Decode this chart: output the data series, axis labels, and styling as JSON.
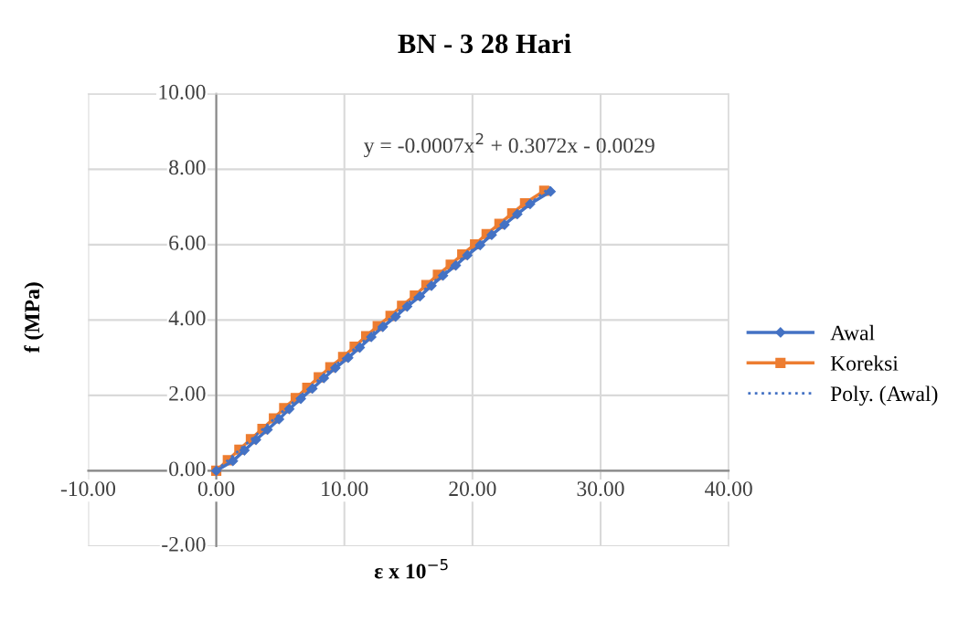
{
  "chart_data": {
    "type": "line",
    "title": "BN - 3 28 Hari",
    "xlabel": "ε x 10$^{−5}$",
    "ylabel": "f (MPa)",
    "xlim": [
      -10,
      40
    ],
    "xticks": [
      {
        "value": -10,
        "label": "-10.00"
      },
      {
        "value": 0,
        "label": "0.00"
      },
      {
        "value": 10,
        "label": "10.00"
      },
      {
        "value": 20,
        "label": "20.00"
      },
      {
        "value": 30,
        "label": "30.00"
      },
      {
        "value": 40,
        "label": "40.00"
      }
    ],
    "ylim": [
      -2,
      10
    ],
    "yticks": [
      {
        "value": -2,
        "label": "-2.00"
      },
      {
        "value": 0,
        "label": "0.00"
      },
      {
        "value": 2,
        "label": "2.00"
      },
      {
        "value": 4,
        "label": "4.00"
      },
      {
        "value": 6,
        "label": "6.00"
      },
      {
        "value": 8,
        "label": "8.00"
      },
      {
        "value": 10,
        "label": "10.00"
      }
    ],
    "grid": true,
    "legend": "right",
    "annotations": [
      "y = -0.0007x$^{2}$ + 0.3072x - 0.0029"
    ],
    "series": [
      {
        "name": "Awal",
        "color": "#4472c4",
        "marker": "diamond",
        "line_style": "solid",
        "x": [
          0,
          1.3,
          2.2,
          3.1,
          4.0,
          4.9,
          5.7,
          6.6,
          7.5,
          8.4,
          9.3,
          10.3,
          11.2,
          12.1,
          13.0,
          14.0,
          14.9,
          15.9,
          16.8,
          17.7,
          18.7,
          19.6,
          20.6,
          21.5,
          22.5,
          23.5,
          24.5,
          26.1
        ],
        "values": [
          0,
          0.26,
          0.54,
          0.82,
          1.09,
          1.37,
          1.64,
          1.91,
          2.18,
          2.46,
          2.73,
          3.0,
          3.27,
          3.55,
          3.82,
          4.09,
          4.36,
          4.63,
          4.91,
          5.18,
          5.45,
          5.72,
          5.99,
          6.26,
          6.53,
          6.81,
          7.08,
          7.41
        ]
      },
      {
        "name": "Koreksi",
        "color": "#ed7d31",
        "marker": "square",
        "line_style": "solid",
        "x": [
          0,
          0.9,
          1.8,
          2.7,
          3.6,
          4.5,
          5.3,
          6.2,
          7.1,
          8.0,
          8.9,
          9.9,
          10.8,
          11.7,
          12.6,
          13.6,
          14.5,
          15.5,
          16.4,
          17.3,
          18.3,
          19.2,
          20.2,
          21.1,
          22.1,
          23.1,
          24.1,
          25.6
        ],
        "values": [
          0,
          0.28,
          0.56,
          0.84,
          1.11,
          1.39,
          1.66,
          1.93,
          2.2,
          2.48,
          2.75,
          3.02,
          3.29,
          3.57,
          3.84,
          4.11,
          4.38,
          4.65,
          4.93,
          5.2,
          5.47,
          5.74,
          6.01,
          6.28,
          6.55,
          6.83,
          7.1,
          7.43
        ]
      },
      {
        "name": "Poly. (Awal)",
        "color": "#4472c4",
        "marker": "none",
        "line_style": "dotted",
        "x": [
          0,
          5,
          10,
          15,
          20,
          26.1
        ],
        "values": [
          0,
          1.52,
          3.0,
          4.45,
          5.86,
          7.53
        ]
      }
    ]
  }
}
